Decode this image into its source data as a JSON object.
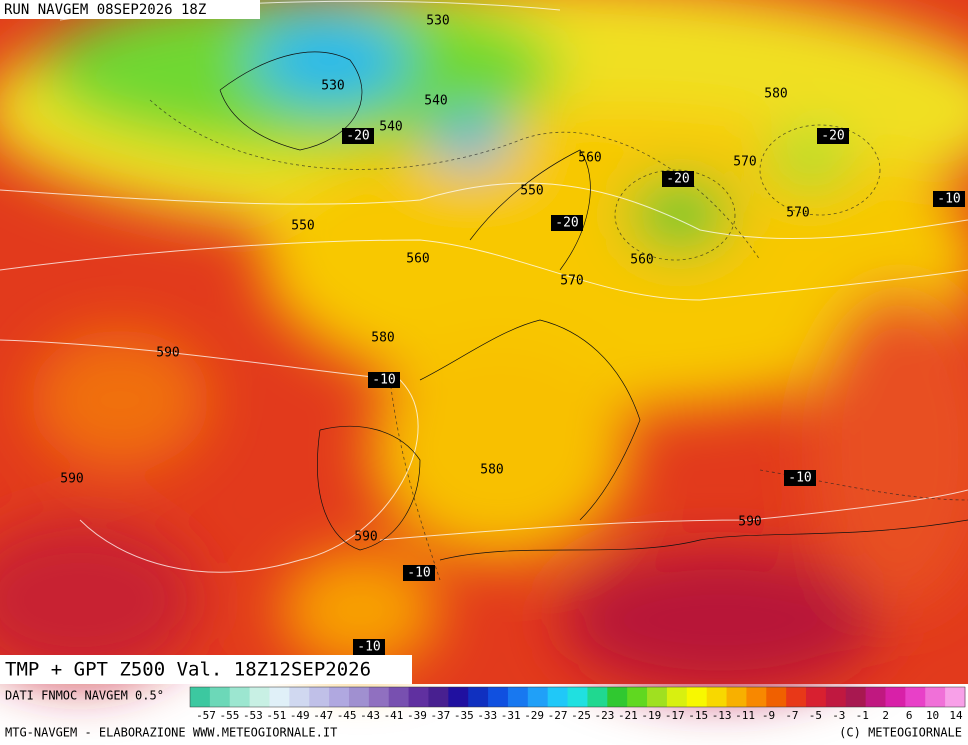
{
  "header": "RUN NAVGEM 08SEP2026 18Z",
  "map_title": "TMP + GPT Z500 Val. 18Z12SEP2026",
  "source": "DATI FNMOC NAVGEM 0.5°",
  "footer_left": "MTG-NAVGEM - ELABORAZIONE WWW.METEOGIORNALE.IT",
  "footer_right": "(C) METEOGIORNALE",
  "geopotential_labels": [
    530,
    530,
    540,
    540,
    560,
    550,
    580,
    570,
    570,
    550,
    560,
    560,
    570,
    580,
    590,
    580,
    590,
    590,
    590
  ],
  "temperature_labels": [
    -20,
    -20,
    -20,
    -20,
    -10,
    -10,
    -10,
    -10,
    -10
  ],
  "scale": {
    "labels": [
      -57,
      -55,
      -53,
      -51,
      -49,
      -47,
      -45,
      -43,
      -41,
      -39,
      -37,
      -35,
      -33,
      -31,
      -29,
      -27,
      -25,
      -23,
      -21,
      -19,
      -17,
      -15,
      -13,
      -11,
      -9,
      -7,
      -5,
      -3,
      -1,
      2,
      6,
      10,
      14
    ],
    "colors": [
      "#3cc8a0",
      "#6cd8b8",
      "#9ce6d0",
      "#c8f0e4",
      "#e0f0f8",
      "#d0d8f0",
      "#c0c0e8",
      "#b0a8e0",
      "#a090d0",
      "#9070c0",
      "#7850b0",
      "#6030a0",
      "#482090",
      "#2010a0",
      "#1030c0",
      "#1050e0",
      "#1878f0",
      "#20a0f8",
      "#20c8f8",
      "#20e0e0",
      "#20d890",
      "#30c830",
      "#60d820",
      "#a0e020",
      "#d8f010",
      "#f8f800",
      "#f8d800",
      "#f8b000",
      "#f88800",
      "#f06000",
      "#e83818",
      "#d82030",
      "#c01840",
      "#a81850",
      "#c01880",
      "#d820a8",
      "#e840c8",
      "#f070d8",
      "#f8a0e8"
    ]
  }
}
